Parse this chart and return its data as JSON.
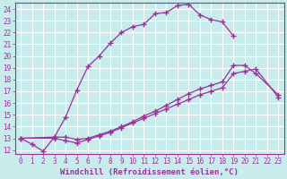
{
  "xlabel": "Windchill (Refroidissement éolien,°C)",
  "ylabel": "",
  "xlim": [
    -0.5,
    23.5
  ],
  "ylim": [
    11.7,
    24.5
  ],
  "xticks": [
    0,
    1,
    2,
    3,
    4,
    5,
    6,
    7,
    8,
    9,
    10,
    11,
    12,
    13,
    14,
    15,
    16,
    17,
    18,
    19,
    20,
    21,
    22,
    23
  ],
  "yticks": [
    12,
    13,
    14,
    15,
    16,
    17,
    18,
    19,
    20,
    21,
    22,
    23,
    24
  ],
  "background_color": "#c8ecec",
  "grid_color": "#ffffff",
  "line_color": "#993399",
  "curve1_x": [
    0,
    1,
    2,
    3,
    4,
    5,
    6,
    7,
    8,
    9,
    10,
    11,
    12,
    13,
    14,
    15,
    16,
    17,
    18,
    19
  ],
  "curve1_y": [
    13.0,
    12.5,
    11.9,
    13.1,
    14.8,
    17.1,
    19.1,
    20.0,
    21.1,
    22.0,
    22.5,
    22.7,
    23.6,
    23.7,
    24.3,
    24.4,
    23.5,
    23.1,
    22.9,
    21.7
  ],
  "curve2_x": [
    0,
    3,
    4,
    5,
    6,
    7,
    8,
    9,
    10,
    11,
    12,
    13,
    14,
    15,
    16,
    17,
    18,
    19,
    20,
    21,
    23
  ],
  "curve2_y": [
    13.0,
    13.1,
    13.1,
    12.9,
    13.0,
    13.3,
    13.6,
    14.0,
    14.4,
    14.9,
    15.3,
    15.8,
    16.3,
    16.8,
    17.2,
    17.5,
    17.8,
    19.2,
    19.2,
    18.5,
    16.7
  ],
  "curve3_x": [
    0,
    3,
    4,
    5,
    6,
    7,
    8,
    9,
    10,
    11,
    12,
    13,
    14,
    15,
    16,
    17,
    18,
    19,
    20,
    21,
    23
  ],
  "curve3_y": [
    13.0,
    13.0,
    12.8,
    12.6,
    12.9,
    13.2,
    13.5,
    13.9,
    14.3,
    14.7,
    15.1,
    15.5,
    15.9,
    16.3,
    16.7,
    17.0,
    17.3,
    18.5,
    18.7,
    18.9,
    16.5
  ],
  "marker": "+",
  "markersize": 4,
  "linewidth": 0.9,
  "tick_fontsize": 5.5,
  "label_fontsize": 6.5
}
